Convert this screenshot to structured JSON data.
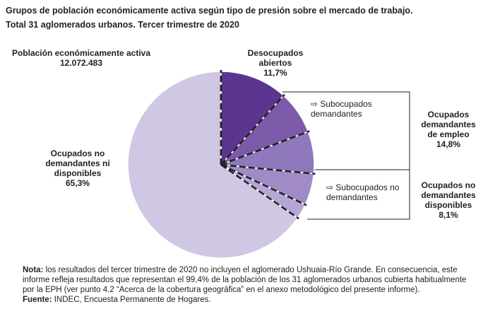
{
  "title": "Grupos de población económicamente activa según tipo de presión sobre el mercado de trabajo.",
  "subtitle": "Total 31 aglomerados urbanos. Tercer trimestre de 2020",
  "chart_data": {
    "type": "pie",
    "total_label": "Población económicamente activa",
    "total_value": "12.072.483",
    "categories": [
      "Desocupados abiertos",
      "Subocupados demandantes",
      null,
      "Subocupados no demandantes",
      null,
      "Ocupados no demandantes ni disponibles"
    ],
    "values": [
      11.7,
      7.5,
      7.3,
      5.5,
      2.6,
      65.3
    ],
    "value_labels": [
      "11,7%",
      null,
      null,
      null,
      null,
      "65,3%"
    ],
    "colors": [
      "#5b3691",
      "#7b5ba9",
      "#8f78bc",
      "#a08bc7",
      "#b5a6d5",
      "#cfc7e4"
    ],
    "groups": [
      {
        "label": "Ocupados demandantes de empleo",
        "value": 14.8,
        "value_label": "14,8%"
      },
      {
        "label": "Ocupados no demandantes disponibles",
        "value": 8.1,
        "value_label": "8,1%"
      }
    ]
  },
  "note": {
    "label": "Nota:",
    "text": "los resultados del tercer trimestre de 2020 no incluyen el aglomerado Ushuaia-Río Grande. En consecuencia, este informe refleja resultados que representan el 99,4% de la población de los 31 aglomerados urbanos cubierta habitualmente por la EPH (ver punto 4.2 “Acerca de la cobertura geográfica” en el anexo metodológico del presente informe)."
  },
  "source": {
    "label": "Fuente:",
    "text": "INDEC, Encuesta Permanente de Hogares."
  }
}
